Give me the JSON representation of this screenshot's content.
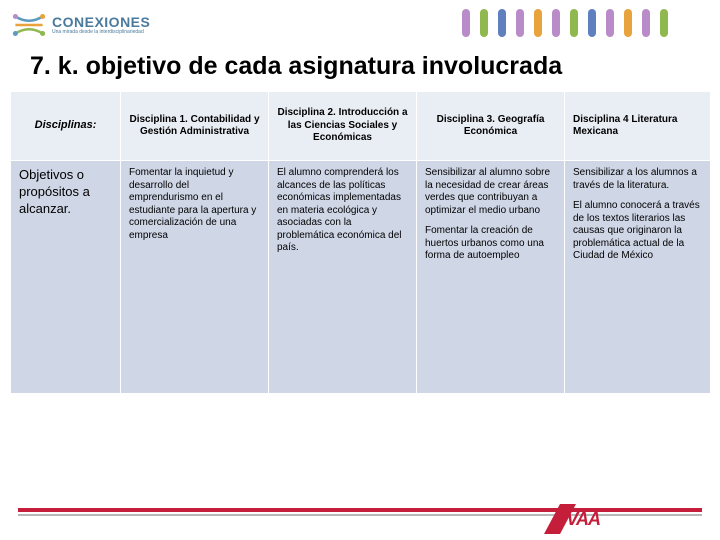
{
  "logo": {
    "brand": "CONEXIONES",
    "tagline": "Una mirada desde la interdisciplinariedad"
  },
  "stripes": [
    "#b98cc9",
    "#8fb84f",
    "#5f7fbf",
    "#b98cc9",
    "#e8a33d",
    "#b98cc9",
    "#8fb84f",
    "#5f7fbf",
    "#b98cc9",
    "#e8a33d",
    "#b98cc9",
    "#8fb84f"
  ],
  "title": "7. k. objetivo de cada asignatura involucrada",
  "table": {
    "header": [
      "Disciplinas:",
      "Disciplina 1. Contabilidad y Gestión Administrativa",
      "Disciplina 2. Introducción a las Ciencias Sociales y Económicas",
      "Disciplina 3. Geografía Económica",
      "Disciplina 4 Literatura Mexicana"
    ],
    "rowLabel": "Objetivos o propósitos a alcanzar.",
    "cells": [
      "Fomentar la inquietud y desarrollo del emprendurismo en el estudiante para la apertura y comercialización de una empresa",
      "El alumno comprenderá los alcances de las políticas económicas implementadas en materia ecológica y asociadas con la problemática económica del país.",
      {
        "p1": "Sensibilizar al alumno sobre la necesidad de crear áreas verdes que contribuyan a optimizar el medio urbano",
        "p2": "Fomentar la creación de huertos urbanos como una forma de autoempleo"
      },
      {
        "p1": "Sensibilizar a los alumnos a través de la literatura.",
        "p2": "El alumno conocerá a través de los textos literarios las causas que originaron la problemática actual de la Ciudad de México"
      }
    ]
  },
  "footer": {
    "logo": "VAA"
  },
  "colors": {
    "headerBg": "#e9edf4",
    "rowBg": "#cfd6e6",
    "red": "#c41e3a",
    "gray": "#b8b8b8"
  }
}
